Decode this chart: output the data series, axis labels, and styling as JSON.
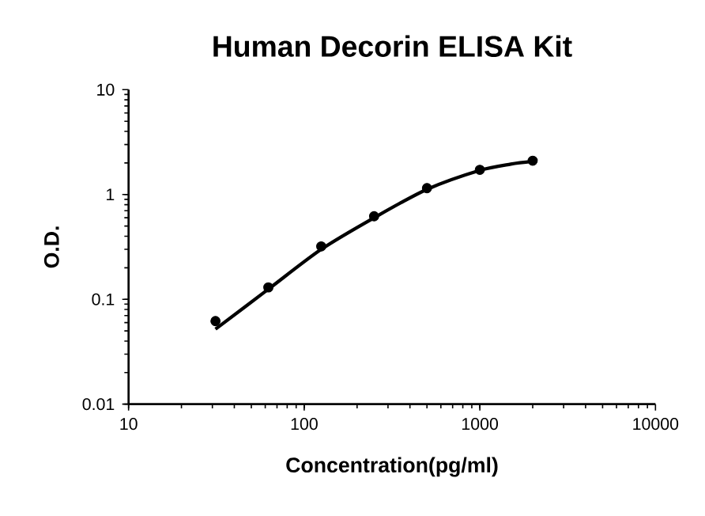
{
  "chart_data": {
    "type": "scatter",
    "title": "Human Decorin ELISA Kit",
    "xlabel": "Concentration(pg/ml)",
    "ylabel": "O.D.",
    "log": "xy",
    "grid": false,
    "xlim": [
      10,
      10000
    ],
    "ylim": [
      0.01,
      10
    ],
    "xticks": [
      10,
      100,
      1000,
      10000
    ],
    "yticks": [
      0.01,
      0.1,
      1,
      10
    ],
    "series": [
      {
        "color": "#000000",
        "marker": "circle",
        "x": [
          31.25,
          62.5,
          125,
          250,
          500,
          1000,
          2000
        ],
        "values": [
          0.062,
          0.13,
          0.32,
          0.62,
          1.15,
          1.72,
          2.1
        ]
      },
      {
        "type": "line",
        "color": "#000000",
        "marker": "none",
        "line_style": "solid",
        "x": [
          31.25,
          62.5,
          125,
          250,
          500,
          1000,
          1500,
          2000
        ],
        "values": [
          0.052,
          0.125,
          0.3,
          0.6,
          1.12,
          1.7,
          1.95,
          2.07
        ]
      }
    ]
  }
}
